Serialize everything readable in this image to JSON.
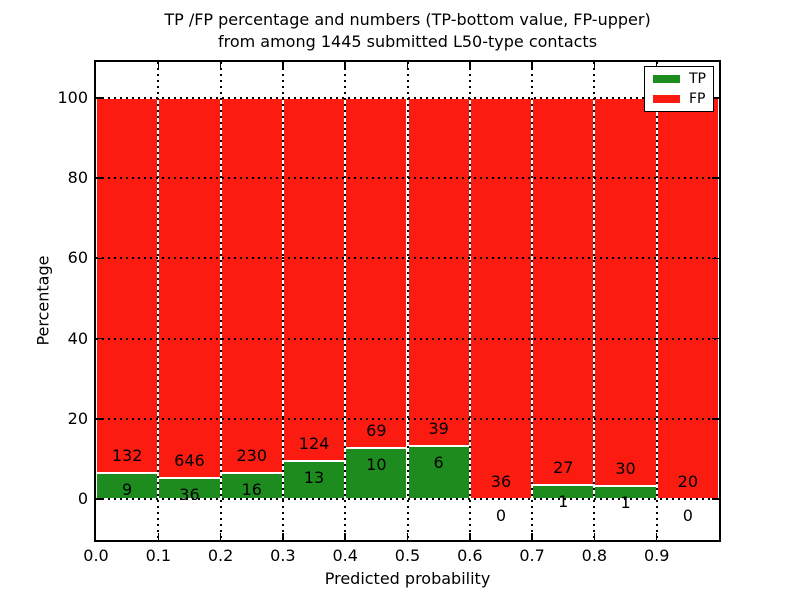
{
  "title": {
    "line1": "TP /FP percentage and numbers (TP-bottom value, FP-upper)",
    "line2": "from among 1445 submitted L50-type contacts"
  },
  "axes": {
    "xlabel": "Predicted probability",
    "ylabel": "Percentage",
    "x_tick_labels": [
      "0.0",
      "0.1",
      "0.2",
      "0.3",
      "0.4",
      "0.5",
      "0.6",
      "0.7",
      "0.8",
      "0.9"
    ],
    "y_tick_labels": [
      "0",
      "20",
      "40",
      "60",
      "80",
      "100"
    ],
    "y_tick_values": [
      0,
      20,
      40,
      60,
      80,
      100
    ]
  },
  "legend": {
    "items": [
      {
        "label": "TP",
        "color": "#1e8b1e"
      },
      {
        "label": "FP",
        "color": "#fb1b10"
      }
    ],
    "position": "upper right"
  },
  "colors": {
    "tp": "#1e8b1e",
    "fp": "#fb1b10",
    "bar_edge": "#ffffff",
    "grid": "#000000",
    "background": "#ffffff"
  },
  "chart_data": {
    "type": "bar",
    "subtype": "stacked-percentage-histogram",
    "title": "TP /FP percentage and numbers (TP-bottom value, FP-upper) from among 1445 submitted L50-type contacts",
    "xlabel": "Predicted probability",
    "ylabel": "Percentage",
    "xlim": [
      0.0,
      1.0
    ],
    "ylim": [
      -10,
      110
    ],
    "bin_width": 0.1,
    "bin_starts": [
      0.0,
      0.1,
      0.2,
      0.3,
      0.4,
      0.5,
      0.6,
      0.7,
      0.8,
      0.9
    ],
    "x_tick_labels": [
      "0.0",
      "0.1",
      "0.2",
      "0.3",
      "0.4",
      "0.5",
      "0.6",
      "0.7",
      "0.8",
      "0.9"
    ],
    "y_tick_labels": [
      "0",
      "20",
      "40",
      "60",
      "80",
      "100"
    ],
    "series": [
      {
        "name": "TP",
        "color": "#1e8b1e",
        "counts": [
          9,
          36,
          16,
          13,
          10,
          6,
          0,
          1,
          1,
          0
        ]
      },
      {
        "name": "FP",
        "color": "#fb1b10",
        "counts": [
          132,
          646,
          230,
          124,
          69,
          39,
          36,
          27,
          30,
          20
        ]
      }
    ],
    "tp_percent_of_bin": [
      6.38,
      5.28,
      6.5,
      9.49,
      12.66,
      13.33,
      0.0,
      3.57,
      3.23,
      0.0
    ],
    "bar_total_height_percent": 100,
    "total_contacts": 1445,
    "legend_position": "upper right",
    "grid": true,
    "grid_style": "dotted"
  }
}
